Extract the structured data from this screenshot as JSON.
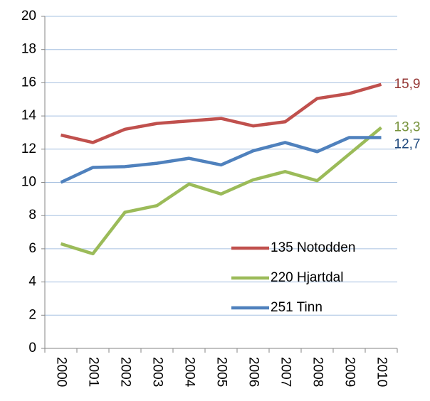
{
  "chart_data": {
    "type": "line",
    "categories": [
      "2000",
      "2001",
      "2002",
      "2003",
      "2004",
      "2005",
      "2006",
      "2007",
      "2008",
      "2009",
      "2010"
    ],
    "series": [
      {
        "name": "135 Notodden",
        "color": "#c0504d",
        "label_color": "#953735",
        "values": [
          12.85,
          12.4,
          13.2,
          13.55,
          13.7,
          13.85,
          13.4,
          13.65,
          15.05,
          15.35,
          15.9
        ],
        "value_labels": [
          null,
          null,
          null,
          null,
          null,
          null,
          null,
          null,
          null,
          null,
          "15,9"
        ]
      },
      {
        "name": "220 Hjartdal",
        "color": "#9bbb59",
        "label_color": "#77933c",
        "values": [
          6.3,
          5.7,
          8.2,
          8.6,
          9.9,
          9.3,
          10.15,
          10.65,
          10.1,
          11.7,
          13.3
        ],
        "value_labels": [
          null,
          null,
          null,
          null,
          null,
          null,
          null,
          null,
          null,
          null,
          "13,3"
        ]
      },
      {
        "name": "251 Tinn",
        "color": "#4f81bd",
        "label_color": "#1f497d",
        "values": [
          10.0,
          10.9,
          10.95,
          11.15,
          11.45,
          11.05,
          11.9,
          12.4,
          11.85,
          12.7,
          12.7
        ],
        "value_labels": [
          null,
          null,
          null,
          null,
          null,
          null,
          null,
          null,
          null,
          null,
          "12,7"
        ]
      }
    ],
    "ylim": [
      0,
      20
    ],
    "yticks": [
      0,
      2,
      4,
      6,
      8,
      10,
      12,
      14,
      16,
      18,
      20
    ],
    "grid": true,
    "legend": "lower right"
  }
}
